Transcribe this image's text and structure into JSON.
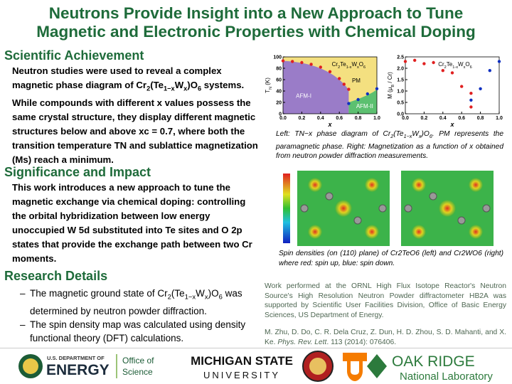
{
  "header": {
    "title_lines": [
      "Neutrons Provide Insight into a New Approach to Tune",
      "Magnetic and Electronic Properties with Chemical Doping"
    ]
  },
  "sections": [
    {
      "heading": "Scientific Achievement",
      "text": [
        "Neutron studies were used to reveal a complex magnetic phase diagram of Cr",
        "2",
        "(Te",
        "1−x",
        "W",
        "x",
        ")O",
        "6",
        " systems. While compounds with different x values possess the same crystal structure, they display different magnetic structures below and above xc = 0.7, where both the transition temperature TN and sublattice magnetization (Ms) reach a minimum."
      ]
    },
    {
      "heading": "Significance and Impact",
      "text": [
        "This work introduces a new approach to tune the magnetic exchange via chemical doping: controlling the orbital hybridization between low energy unoccupied W 5d substituted into Te sites and O 2p states that provide the exchange path between two Cr moments."
      ]
    },
    {
      "heading": "Research Details",
      "bullets": [
        [
          "The magnetic ground state of Cr",
          "2",
          "(Te",
          "1−x",
          "W",
          "x",
          ")O",
          "6",
          " was determined by neutron powder diffraction."
        ],
        [
          "The spin density map was calculated using density functional theory (DFT) calculations."
        ]
      ]
    }
  ],
  "figures": {
    "caption_1": [
      "Left: TN−x phase diagram of Cr",
      "2",
      "(Te",
      "1−x",
      "W",
      "x",
      ")O",
      "6",
      ". PM represents the paramagnetic phase. Right: Magnetization as a function of x obtained from neutron powder diffraction measurements."
    ],
    "caption_2": "Spin densities (on (110) plane) of Cr2TeO6 (left) and Cr2WO6 (right) where red: spin up, blue: spin down."
  },
  "credit": {
    "text": "Work performed at the ORNL High Flux Isotope Reactor's Neutron Source's High Resolution Neutron Powder diffractometer HB2A was supported by Scientific User Facilities Division, Office of Basic Energy Sciences, US Department of Energy.",
    "citation": [
      "M. Zhu, D. Do, C. R. Dela Cruz, Z. Dun, H. D. Zhou, S. D. Mahanti, and X. Ke. ",
      "Phys. Rev. Lett",
      ". 113 (2014): 076406."
    ]
  },
  "footer": {
    "doe_top": "U.S. DEPARTMENT OF",
    "doe_main": "ENERGY",
    "office_1": "Office of",
    "office_2": "Science",
    "msu_1": "MICHIGAN STATE",
    "msu_2": "UNIVERSITY",
    "ornl_1": "OAK RIDGE",
    "ornl_2": "National Laboratory"
  },
  "chart_data": [
    {
      "type": "scatter",
      "inset_title": [
        "Cr",
        "2",
        "Te",
        "1-x",
        "W",
        "x",
        "O",
        "6"
      ],
      "xlabel": "x",
      "ylabel": [
        "T",
        "N",
        " (K)"
      ],
      "annotations": [
        "PM",
        "AFM-I",
        "AFM-II"
      ],
      "xlim": [
        0,
        1
      ],
      "ylim": [
        0,
        100
      ],
      "xticks": [
        {
          "value": 0,
          "label": "0.0"
        },
        0.2,
        0.4,
        0.6,
        0.8,
        {
          "value": 1,
          "label": "1.0"
        }
      ],
      "yticks": [
        0,
        20,
        40,
        60,
        80,
        100
      ],
      "series": [
        {
          "color": "#e02020",
          "x": [
            0,
            0.1,
            0.2,
            0.3,
            0.4,
            0.5,
            0.6,
            0.65,
            0.7
          ],
          "values": [
            93,
            92,
            90,
            87,
            82,
            74,
            62,
            52,
            43
          ]
        },
        {
          "color": "#1030c0",
          "x": [
            0.7,
            0.8,
            0.9,
            1
          ],
          "values": [
            18,
            25,
            35,
            44
          ]
        }
      ]
    },
    {
      "type": "scatter",
      "inset_title": [
        "Cr",
        "2",
        "Te",
        "1-x",
        "W",
        "x",
        "O",
        "6"
      ],
      "xlabel": "x",
      "ylabel": [
        "M (μ",
        "B",
        " / Cr)"
      ],
      "xlim": [
        0,
        1
      ],
      "ylim": [
        0,
        2.5
      ],
      "xticks": [
        {
          "value": 0,
          "label": "0.0"
        },
        0.2,
        0.4,
        0.6,
        0.8,
        {
          "value": 1,
          "label": "1.0"
        }
      ],
      "yticks": [
        {
          "value": 0,
          "label": "0.0"
        },
        0.5,
        {
          "value": 1,
          "label": "1.0"
        },
        1.5,
        {
          "value": 2,
          "label": "2.0"
        },
        2.5
      ],
      "series": [
        {
          "color": "#e02020",
          "x": [
            0,
            0.1,
            0.2,
            0.3,
            0.4,
            0.5,
            0.6,
            0.7,
            0.7
          ],
          "values": [
            2.3,
            2.35,
            2.2,
            2.25,
            1.9,
            1.8,
            1.2,
            0.9,
            0.3
          ]
        },
        {
          "color": "#1030c0",
          "x": [
            0.7,
            0.8,
            0.9,
            1
          ],
          "values": [
            0.6,
            1.1,
            1.9,
            2.3
          ]
        }
      ]
    }
  ]
}
